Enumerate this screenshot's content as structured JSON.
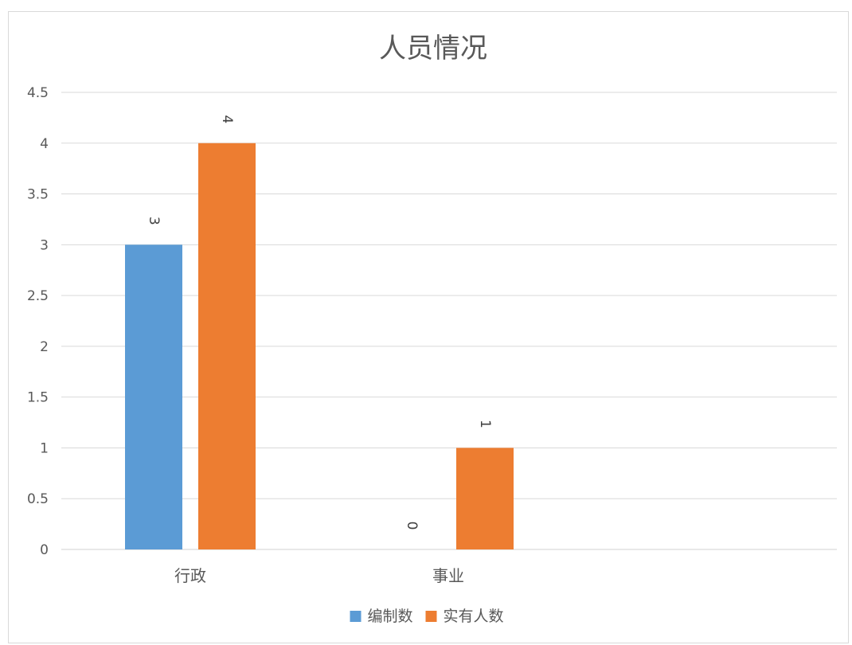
{
  "chart_data": {
    "type": "bar",
    "title": "人员情况",
    "categories": [
      "行政",
      "事业"
    ],
    "series": [
      {
        "name": "编制数",
        "values": [
          3,
          0
        ],
        "color": "#5b9bd5"
      },
      {
        "name": "实有人数",
        "values": [
          4,
          1
        ],
        "color": "#ed7d31"
      }
    ],
    "ylim": [
      0,
      4.5
    ],
    "yticks": [
      0,
      0.5,
      1,
      1.5,
      2,
      2.5,
      3,
      3.5,
      4,
      4.5
    ],
    "ytick_labels": [
      "0",
      "0.5",
      "1",
      "1.5",
      "2",
      "2.5",
      "3",
      "3.5",
      "4",
      "4.5"
    ],
    "grid": true,
    "data_labels": true,
    "data_label_orientation": "rotated",
    "legend_position": "bottom",
    "xlabel": "",
    "ylabel": ""
  }
}
